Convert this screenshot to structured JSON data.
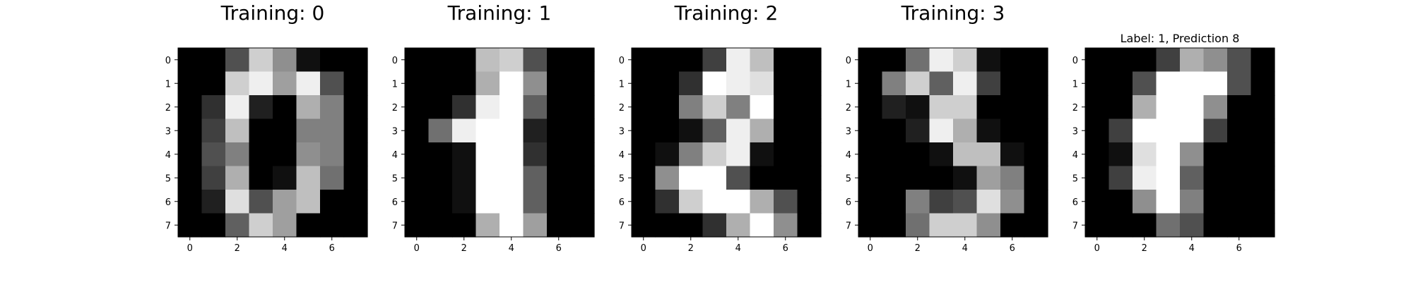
{
  "chart_data": [
    {
      "type": "heatmap",
      "title": "Training: 0",
      "colormap": "gray_r-inverted (0=black, 16=white)",
      "vmin": 0,
      "vmax": 16,
      "x_ticks": [
        0,
        2,
        4,
        6
      ],
      "y_ticks": [
        0,
        1,
        2,
        3,
        4,
        5,
        6,
        7
      ],
      "xlim": [
        -0.5,
        7.5
      ],
      "ylim": [
        7.5,
        -0.5
      ],
      "values": [
        [
          0,
          0,
          5,
          13,
          9,
          1,
          0,
          0
        ],
        [
          0,
          0,
          13,
          15,
          10,
          15,
          5,
          0
        ],
        [
          0,
          3,
          15,
          2,
          0,
          11,
          8,
          0
        ],
        [
          0,
          4,
          12,
          0,
          0,
          8,
          8,
          0
        ],
        [
          0,
          5,
          8,
          0,
          0,
          9,
          8,
          0
        ],
        [
          0,
          4,
          11,
          0,
          1,
          12,
          7,
          0
        ],
        [
          0,
          2,
          14,
          5,
          10,
          12,
          0,
          0
        ],
        [
          0,
          0,
          6,
          13,
          10,
          0,
          0,
          0
        ]
      ]
    },
    {
      "type": "heatmap",
      "title": "Training: 1",
      "colormap": "gray_r-inverted (0=black, 16=white)",
      "vmin": 0,
      "vmax": 16,
      "x_ticks": [
        0,
        2,
        4,
        6
      ],
      "y_ticks": [
        0,
        1,
        2,
        3,
        4,
        5,
        6,
        7
      ],
      "xlim": [
        -0.5,
        7.5
      ],
      "ylim": [
        7.5,
        -0.5
      ],
      "values": [
        [
          0,
          0,
          0,
          12,
          13,
          5,
          0,
          0
        ],
        [
          0,
          0,
          0,
          11,
          16,
          9,
          0,
          0
        ],
        [
          0,
          0,
          3,
          15,
          16,
          6,
          0,
          0
        ],
        [
          0,
          7,
          15,
          16,
          16,
          2,
          0,
          0
        ],
        [
          0,
          0,
          1,
          16,
          16,
          3,
          0,
          0
        ],
        [
          0,
          0,
          1,
          16,
          16,
          6,
          0,
          0
        ],
        [
          0,
          0,
          1,
          16,
          16,
          6,
          0,
          0
        ],
        [
          0,
          0,
          0,
          11,
          16,
          10,
          0,
          0
        ]
      ]
    },
    {
      "type": "heatmap",
      "title": "Training: 2",
      "colormap": "gray_r-inverted (0=black, 16=white)",
      "vmin": 0,
      "vmax": 16,
      "x_ticks": [
        0,
        2,
        4,
        6
      ],
      "y_ticks": [
        0,
        1,
        2,
        3,
        4,
        5,
        6,
        7
      ],
      "xlim": [
        -0.5,
        7.5
      ],
      "ylim": [
        7.5,
        -0.5
      ],
      "values": [
        [
          0,
          0,
          0,
          4,
          15,
          12,
          0,
          0
        ],
        [
          0,
          0,
          3,
          16,
          15,
          14,
          0,
          0
        ],
        [
          0,
          0,
          8,
          13,
          8,
          16,
          0,
          0
        ],
        [
          0,
          0,
          1,
          6,
          15,
          11,
          0,
          0
        ],
        [
          0,
          1,
          8,
          13,
          15,
          1,
          0,
          0
        ],
        [
          0,
          9,
          16,
          16,
          5,
          0,
          0,
          0
        ],
        [
          0,
          3,
          13,
          16,
          16,
          11,
          5,
          0
        ],
        [
          0,
          0,
          0,
          3,
          11,
          16,
          9,
          0
        ]
      ]
    },
    {
      "type": "heatmap",
      "title": "Training: 3",
      "colormap": "gray_r-inverted (0=black, 16=white)",
      "vmin": 0,
      "vmax": 16,
      "x_ticks": [
        0,
        2,
        4,
        6
      ],
      "y_ticks": [
        0,
        1,
        2,
        3,
        4,
        5,
        6,
        7
      ],
      "xlim": [
        -0.5,
        7.5
      ],
      "ylim": [
        7.5,
        -0.5
      ],
      "values": [
        [
          0,
          0,
          7,
          15,
          13,
          1,
          0,
          0
        ],
        [
          0,
          8,
          13,
          6,
          15,
          4,
          0,
          0
        ],
        [
          0,
          2,
          1,
          13,
          13,
          0,
          0,
          0
        ],
        [
          0,
          0,
          2,
          15,
          11,
          1,
          0,
          0
        ],
        [
          0,
          0,
          0,
          1,
          12,
          12,
          1,
          0
        ],
        [
          0,
          0,
          0,
          0,
          1,
          10,
          8,
          0
        ],
        [
          0,
          0,
          8,
          4,
          5,
          14,
          9,
          0
        ],
        [
          0,
          0,
          7,
          13,
          13,
          9,
          0,
          0
        ]
      ]
    },
    {
      "type": "heatmap",
      "title": "Label: 1, Prediction 8",
      "colormap": "gray_r-inverted (0=black, 16=white)",
      "vmin": 0,
      "vmax": 16,
      "x_ticks": [
        0,
        2,
        4,
        6
      ],
      "y_ticks": [
        0,
        1,
        2,
        3,
        4,
        5,
        6,
        7
      ],
      "xlim": [
        -0.5,
        7.5
      ],
      "ylim": [
        7.5,
        -0.5
      ],
      "values": [
        [
          0,
          0,
          0,
          4,
          11,
          9,
          5,
          0
        ],
        [
          0,
          0,
          5,
          16,
          16,
          16,
          5,
          0
        ],
        [
          0,
          0,
          11,
          16,
          16,
          9,
          0,
          0
        ],
        [
          0,
          4,
          16,
          16,
          16,
          4,
          0,
          0
        ],
        [
          0,
          1,
          14,
          16,
          9,
          0,
          0,
          0
        ],
        [
          0,
          4,
          15,
          16,
          6,
          0,
          0,
          0
        ],
        [
          0,
          0,
          9,
          16,
          8,
          0,
          0,
          0
        ],
        [
          0,
          0,
          0,
          7,
          5,
          0,
          0,
          0
        ]
      ]
    }
  ]
}
